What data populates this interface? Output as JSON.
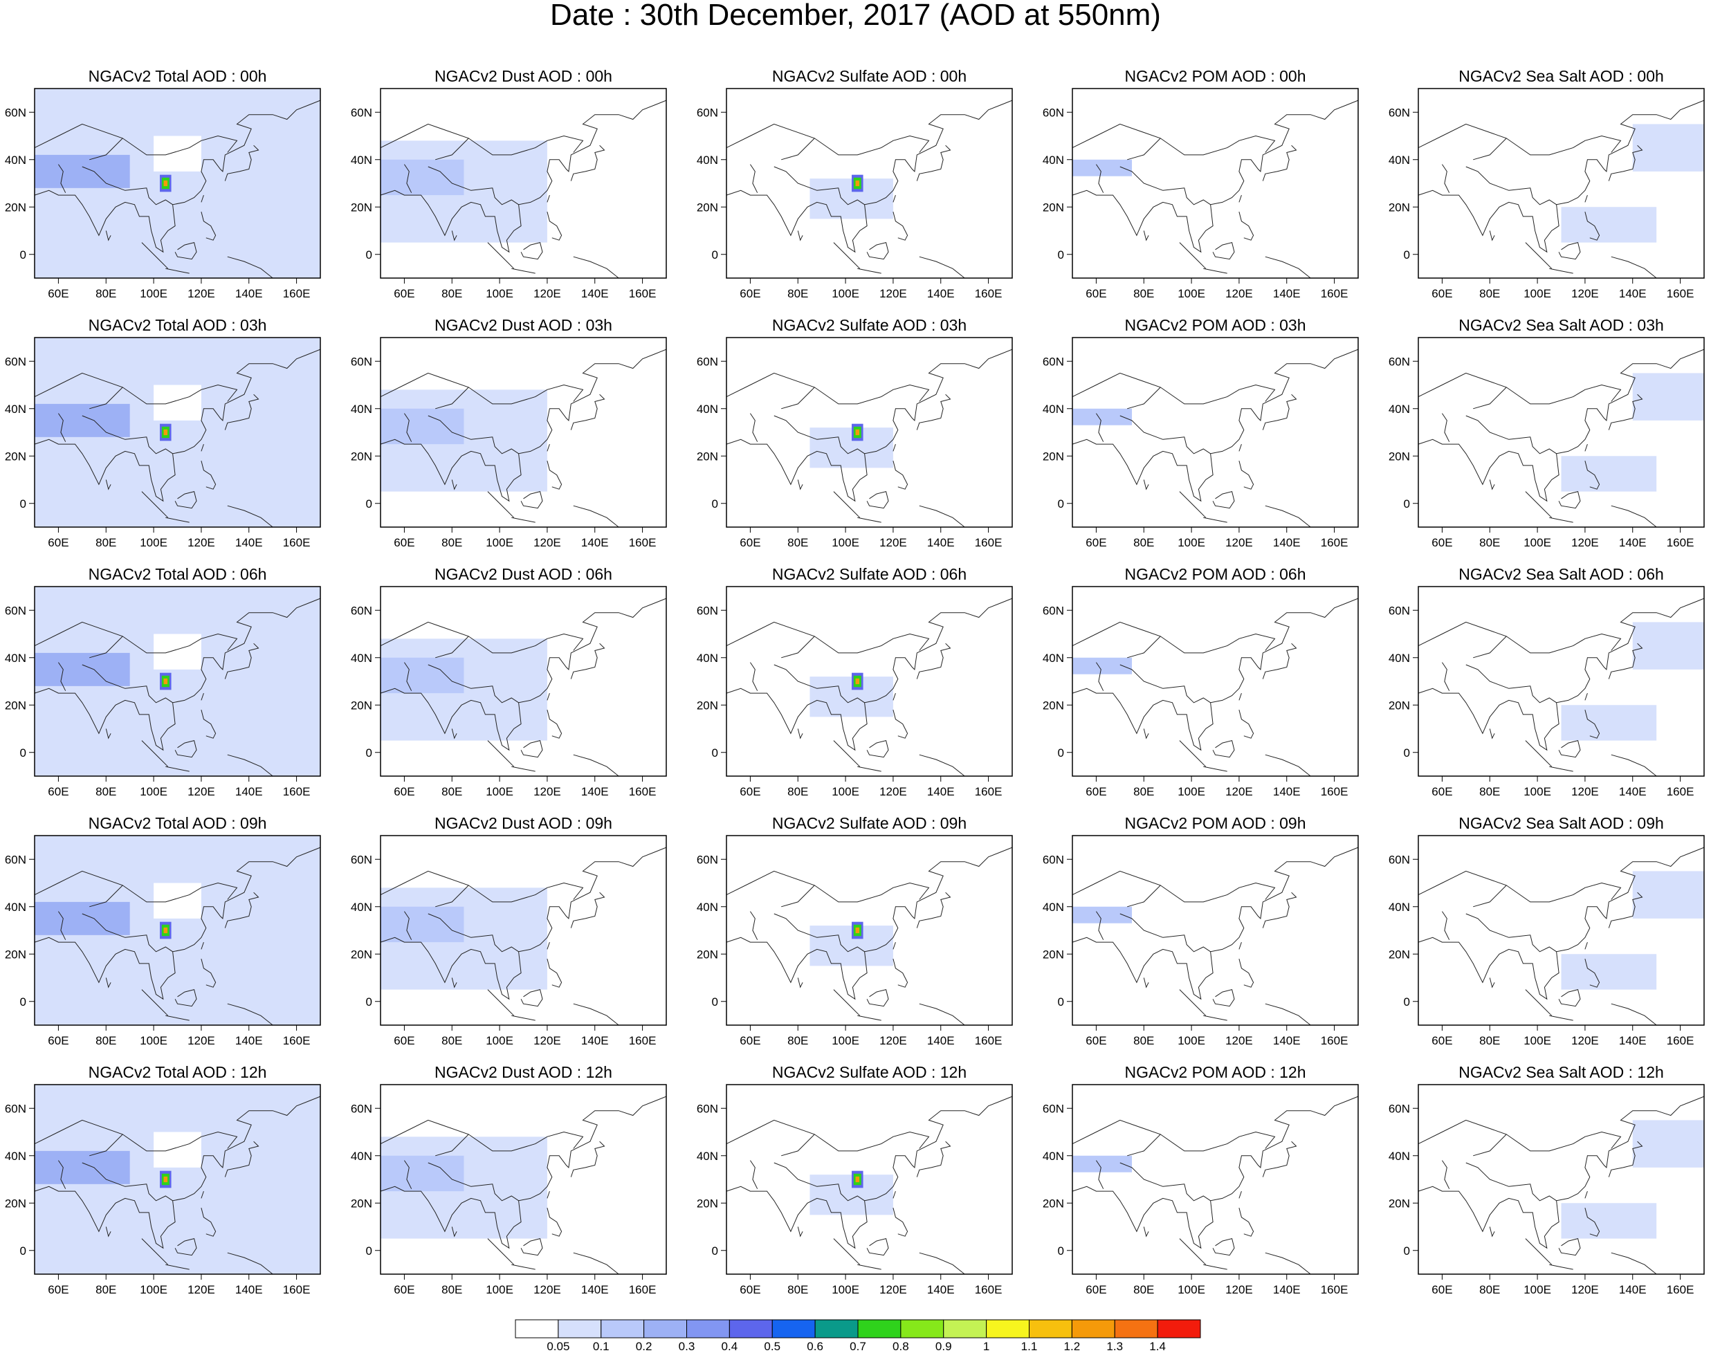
{
  "title": "Date : 30th December, 2017 (AOD at 550nm)",
  "chart_data": {
    "type": "heatmap",
    "title": "Date : 30th December, 2017 (AOD at 550nm)",
    "x_axis": {
      "ticks": [
        60,
        80,
        100,
        120,
        140,
        160
      ],
      "tick_labels": [
        "60E",
        "80E",
        "100E",
        "120E",
        "140E",
        "160E"
      ],
      "range": [
        50,
        170
      ]
    },
    "y_axis": {
      "ticks": [
        0,
        20,
        40,
        60
      ],
      "tick_labels": [
        "0",
        "20N",
        "40N",
        "60N"
      ],
      "range": [
        -10,
        70
      ]
    },
    "grid": false,
    "panel_titles": [
      [
        "NGACv2 Total AOD : 00h",
        "NGACv2 Dust AOD : 00h",
        "NGACv2 Sulfate AOD : 00h",
        "NGACv2 POM AOD : 00h",
        "NGACv2 Sea Salt AOD : 00h"
      ],
      [
        "NGACv2 Total AOD : 03h",
        "NGACv2 Dust AOD : 03h",
        "NGACv2 Sulfate AOD : 03h",
        "NGACv2 POM AOD : 03h",
        "NGACv2 Sea Salt AOD : 03h"
      ],
      [
        "NGACv2 Total AOD : 06h",
        "NGACv2 Dust AOD : 06h",
        "NGACv2 Sulfate AOD : 06h",
        "NGACv2 POM AOD : 06h",
        "NGACv2 Sea Salt AOD : 06h"
      ],
      [
        "NGACv2 Total AOD : 09h",
        "NGACv2 Dust AOD : 09h",
        "NGACv2 Sulfate AOD : 09h",
        "NGACv2 POM AOD : 09h",
        "NGACv2 Sea Salt  AOD : 09h"
      ],
      [
        "NGACv2 Total AOD  : 12h",
        "NGACv2 Dust AOD : 12h",
        "NGACv2 Sulfate AOD : 12h",
        "NGACv2 POM  AOD : 12h",
        "NGACv2 Sea Salt  AOD : 12h"
      ]
    ],
    "colorbar": {
      "labels": [
        "0.05",
        "0.1",
        "0.2",
        "0.3",
        "0.4",
        "0.5",
        "0.6",
        "0.7",
        "0.8",
        "0.9",
        "1",
        "1.1",
        "1.2",
        "1.3",
        "1.4"
      ],
      "colors": [
        "#ffffff",
        "#d6e0fc",
        "#b9c9fa",
        "#9db1f5",
        "#8296f2",
        "#5d66ec",
        "#1664f0",
        "#0a9a8a",
        "#2fd21c",
        "#86e81a",
        "#c4f254",
        "#f7f51e",
        "#f7c00e",
        "#f59a0a",
        "#f57212",
        "#f21c0c"
      ]
    },
    "hotspot": {
      "lon": 105,
      "lat": 30,
      "note_visible": false
    }
  }
}
